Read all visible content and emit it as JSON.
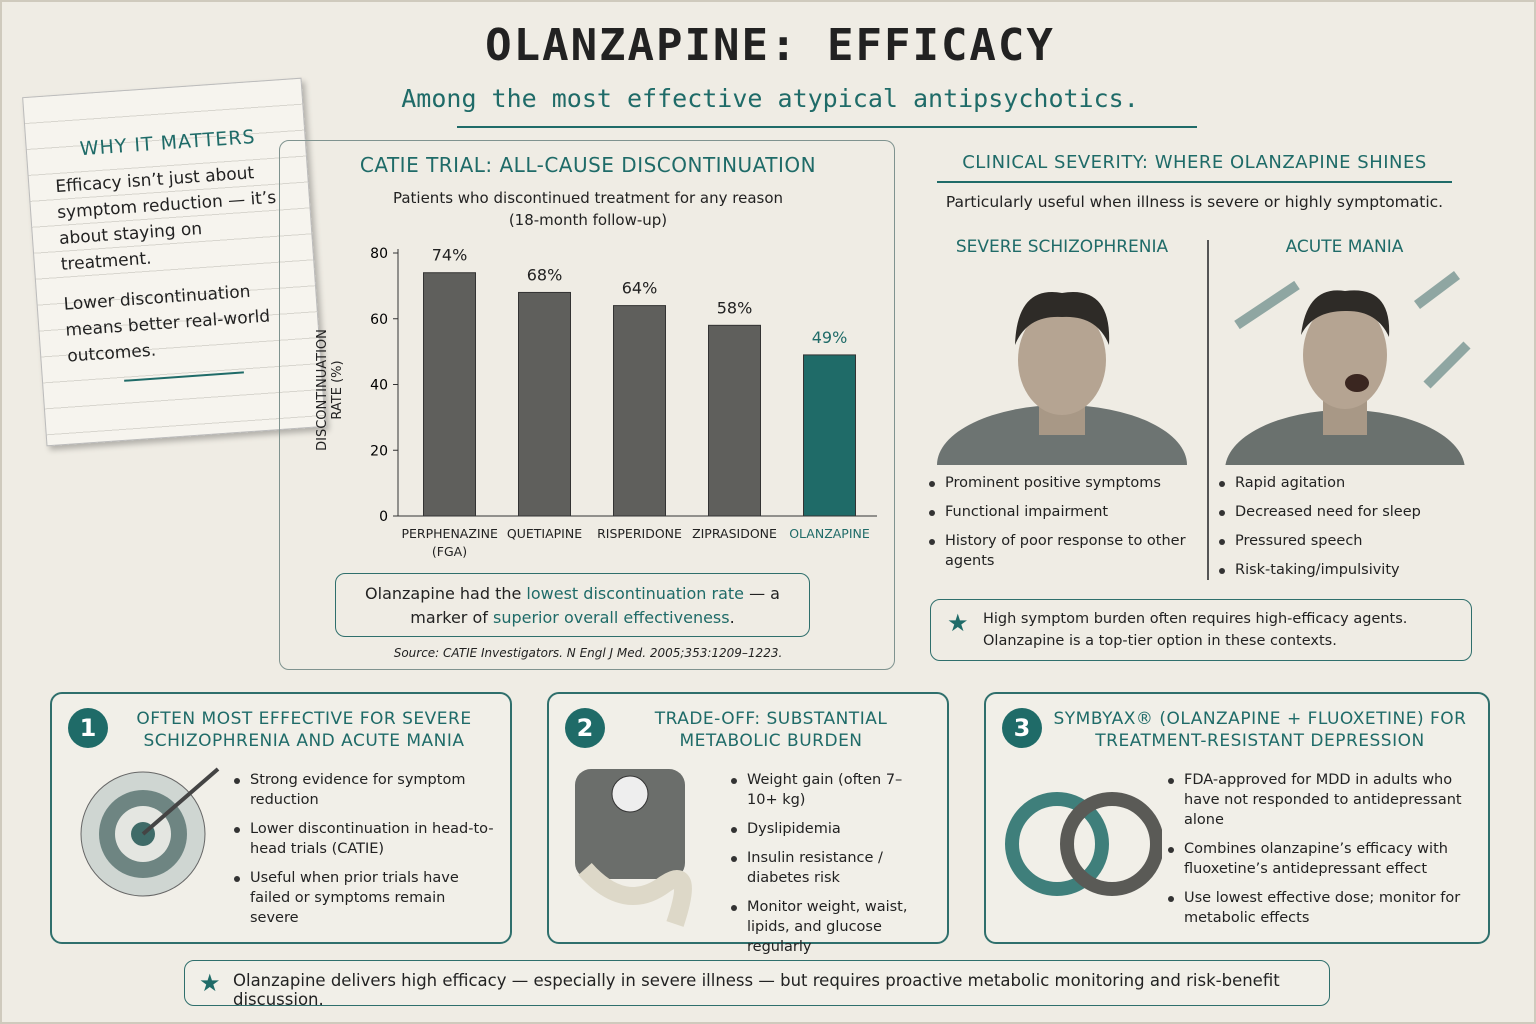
{
  "header": {
    "title": "OLANZAPINE: EFFICACY",
    "subtitle": "Among the most effective atypical antipsychotics."
  },
  "why_it_matters": {
    "title": "WHY IT MATTERS",
    "paragraphs": [
      "Efficacy isn’t just about symptom reduction — it’s about staying on treatment.",
      "Lower discontinuation means better real-world outcomes."
    ]
  },
  "chart_data": {
    "type": "bar",
    "title": "CATIE TRIAL: ALL-CAUSE DISCONTINUATION",
    "subtitle": "Patients who discontinued treatment for any reason (18-month follow-up)",
    "y_label": "DISCONTINUATION RATE (%)",
    "categories": [
      "PERPHENAZINE (FGA)",
      "QUETIAPINE",
      "RISPERIDONE",
      "ZIPRASIDONE",
      "OLANZAPINE"
    ],
    "values": [
      74,
      68,
      64,
      58,
      49
    ],
    "value_labels": [
      "74%",
      "68%",
      "64%",
      "58%",
      "49%"
    ],
    "colors": [
      "#5f5f5c",
      "#5f5f5c",
      "#5f5f5c",
      "#5f5f5c",
      "#1f6b68"
    ],
    "ylim": [
      0,
      80
    ],
    "yticks": [
      0,
      20,
      40,
      60,
      80
    ],
    "annotation": [
      "Olanzapine had the ",
      "lowest discontinuation rate",
      " — a marker of ",
      "superior overall effectiveness",
      "."
    ],
    "source": "Source: CATIE Investigators. N Engl J Med. 2005;353:1209–1223."
  },
  "severity": {
    "title": "CLINICAL SEVERITY: WHERE OLANZAPINE SHINES",
    "intro": "Particularly useful when illness is severe or highly symptomatic.",
    "columns": [
      {
        "title": "SEVERE SCHIZOPHRENIA",
        "bullets": [
          "Prominent positive symptoms",
          "Functional impairment",
          "History of poor response to other agents"
        ]
      },
      {
        "title": "ACUTE MANIA",
        "bullets": [
          "Rapid agitation",
          "Decreased need for sleep",
          "Pressured speech",
          "Risk-taking/impulsivity"
        ]
      }
    ],
    "callout": "High symptom burden often requires high-efficacy agents. Olanzapine is a top-tier option in these contexts."
  },
  "cards": [
    {
      "number": "1",
      "title": "OFTEN MOST EFFECTIVE FOR SEVERE SCHIZOPHRENIA AND ACUTE MANIA",
      "bullets": [
        "Strong evidence for symptom reduction",
        "Lower discontinuation in head-to-head trials (CATIE)",
        "Useful when prior trials have failed or symptoms remain severe"
      ]
    },
    {
      "number": "2",
      "title": "TRADE-OFF: SUBSTANTIAL METABOLIC BURDEN",
      "bullets": [
        "Weight gain (often 7–10+ kg)",
        "Dyslipidemia",
        "Insulin resistance / diabetes risk",
        "Monitor weight, waist, lipids, and glucose regularly"
      ]
    },
    {
      "number": "3",
      "title": "SYMBYAX® (OLANZAPINE + FLUOXETINE) FOR TREATMENT-RESISTANT DEPRESSION",
      "bullets": [
        "FDA-approved for MDD in adults who have not responded to antidepressant alone",
        "Combines olanzapine’s efficacy with fluoxetine’s antidepressant effect",
        "Use lowest effective dose; monitor for metabolic effects"
      ]
    }
  ],
  "footer": "Olanzapine delivers high efficacy — especially in severe illness — but requires proactive metabolic monitoring and risk-benefit discussion."
}
